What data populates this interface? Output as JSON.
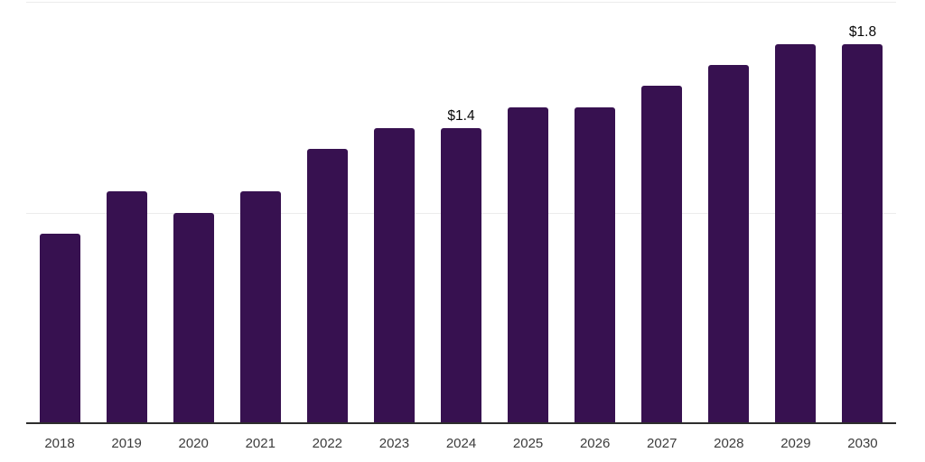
{
  "chart_data": {
    "type": "bar",
    "title": "",
    "xlabel": "",
    "ylabel": "",
    "categories": [
      "2018",
      "2019",
      "2020",
      "2021",
      "2022",
      "2023",
      "2024",
      "2025",
      "2026",
      "2027",
      "2028",
      "2029",
      "2030"
    ],
    "values": [
      0.9,
      1.1,
      1.0,
      1.1,
      1.3,
      1.4,
      1.4,
      1.5,
      1.5,
      1.6,
      1.7,
      1.8,
      1.8
    ],
    "data_labels": {
      "2024": "$1.4",
      "2030": "$1.8"
    },
    "ylim": [
      0,
      2.0
    ],
    "gridline_values": [
      1.0,
      2.0
    ],
    "grid": "horizontal-only",
    "legend": "none",
    "colors": {
      "bar": "#371150",
      "gridline": "#ececec",
      "axis_line": "#2d2d2d",
      "tick_label": "#3c3c3c",
      "data_label": "#070707",
      "background": "#ffffff"
    }
  }
}
